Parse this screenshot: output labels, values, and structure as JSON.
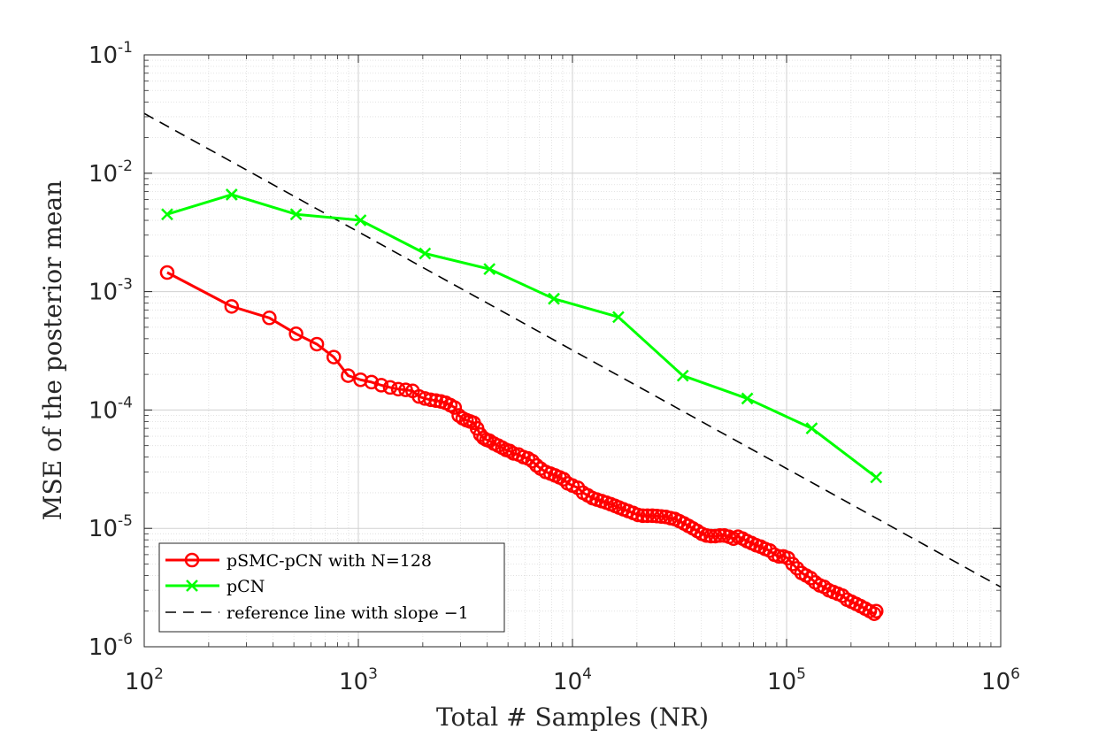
{
  "chart_data": {
    "type": "line",
    "xscale": "log",
    "yscale": "log",
    "title": "",
    "xlabel": "Total # Samples (NR)",
    "ylabel": "MSE of the posterior mean",
    "xlim": [
      100,
      1000000
    ],
    "ylim": [
      1e-06,
      0.1
    ],
    "x_ticks": [
      {
        "value": 100,
        "base": "10",
        "exp": "2"
      },
      {
        "value": 1000,
        "base": "10",
        "exp": "3"
      },
      {
        "value": 10000,
        "base": "10",
        "exp": "4"
      },
      {
        "value": 100000,
        "base": "10",
        "exp": "5"
      },
      {
        "value": 1000000,
        "base": "10",
        "exp": "6"
      }
    ],
    "y_ticks": [
      {
        "value": 0.1,
        "base": "10",
        "exp": "-1"
      },
      {
        "value": 0.01,
        "base": "10",
        "exp": "-2"
      },
      {
        "value": 0.001,
        "base": "10",
        "exp": "-3"
      },
      {
        "value": 0.0001,
        "base": "10",
        "exp": "-4"
      },
      {
        "value": 1e-05,
        "base": "10",
        "exp": "-5"
      },
      {
        "value": 1e-06,
        "base": "10",
        "exp": "-6"
      }
    ],
    "grid": true,
    "minor_grid": true,
    "legend_position": "bottom-left",
    "series": [
      {
        "name": "pSMC-pCN with N=128",
        "color": "#ff0000",
        "marker": "circle",
        "line": "solid",
        "x": [
          128,
          256,
          384,
          512,
          640,
          768,
          896,
          1024,
          1152,
          1280,
          1408,
          1536,
          1664,
          1792,
          1920,
          2048,
          2176,
          2304,
          2432,
          2560,
          2688,
          2816,
          2944,
          3072,
          3200,
          3328,
          3456,
          3584,
          3712,
          3840,
          3968,
          4096,
          4300,
          4500,
          4700,
          4900,
          5100,
          5300,
          5600,
          5900,
          6200,
          6500,
          6800,
          7100,
          7500,
          7900,
          8300,
          8700,
          9100,
          9500,
          10000,
          10600,
          11200,
          11800,
          12400,
          13000,
          13700,
          14400,
          15100,
          15800,
          16500,
          17300,
          18200,
          19200,
          20200,
          21300,
          22400,
          23600,
          24800,
          26000,
          27300,
          28700,
          30100,
          31600,
          33200,
          34800,
          36500,
          38300,
          40200,
          42200,
          44300,
          46500,
          48800,
          51200,
          53800,
          56500,
          59300,
          62300,
          65400,
          68700,
          72100,
          75700,
          79500,
          83500,
          87700,
          92100,
          96700,
          101500,
          106600,
          111900,
          117500,
          123400,
          129600,
          136100,
          142900,
          150000,
          157500,
          165400,
          173700,
          182400,
          191500,
          201100,
          211200,
          221800,
          232900,
          244500,
          256700,
          262144
        ],
        "values": [
          0.00145,
          0.00075,
          0.0006,
          0.00044,
          0.00036,
          0.00028,
          0.000195,
          0.00018,
          0.000172,
          0.000162,
          0.000155,
          0.00015,
          0.000148,
          0.000145,
          0.00013,
          0.000125,
          0.000122,
          0.00012,
          0.000118,
          0.000115,
          0.00011,
          0.000105,
          9e-05,
          8.5e-05,
          8.2e-05,
          8e-05,
          7.8e-05,
          7e-05,
          6.2e-05,
          5.8e-05,
          5.6e-05,
          5.5e-05,
          5.2e-05,
          5e-05,
          4.8e-05,
          4.6e-05,
          4.5e-05,
          4.3e-05,
          4.2e-05,
          4e-05,
          3.9e-05,
          3.7e-05,
          3.4e-05,
          3.2e-05,
          3e-05,
          2.9e-05,
          2.8e-05,
          2.7e-05,
          2.6e-05,
          2.4e-05,
          2.3e-05,
          2.2e-05,
          2e-05,
          1.9e-05,
          1.8e-05,
          1.75e-05,
          1.7e-05,
          1.65e-05,
          1.6e-05,
          1.55e-05,
          1.5e-05,
          1.45e-05,
          1.4e-05,
          1.35e-05,
          1.3e-05,
          1.28e-05,
          1.28e-05,
          1.28e-05,
          1.27e-05,
          1.26e-05,
          1.25e-05,
          1.22e-05,
          1.2e-05,
          1.15e-05,
          1.1e-05,
          1.05e-05,
          1e-05,
          9.5e-06,
          9e-06,
          8.7e-06,
          8.6e-06,
          8.6e-06,
          8.7e-06,
          8.7e-06,
          8.5e-06,
          8.2e-06,
          8.5e-06,
          8.2e-06,
          7.8e-06,
          7.5e-06,
          7.2e-06,
          7e-06,
          6.7e-06,
          6.5e-06,
          6e-06,
          5.8e-06,
          5.8e-06,
          5.6e-06,
          5e-06,
          4.6e-06,
          4.2e-06,
          4e-06,
          3.8e-06,
          3.5e-06,
          3.3e-06,
          3.2e-06,
          3e-06,
          2.9e-06,
          2.8e-06,
          2.7e-06,
          2.5e-06,
          2.4e-06,
          2.3e-06,
          2.2e-06,
          2.1e-06,
          2e-06,
          1.9e-06,
          2e-06
        ]
      },
      {
        "name": "pCN",
        "color": "#00ff00",
        "marker": "x",
        "line": "solid",
        "x": [
          128,
          256,
          512,
          1024,
          2048,
          4096,
          8192,
          16384,
          32768,
          65536,
          131072,
          262144
        ],
        "values": [
          0.0045,
          0.0066,
          0.0045,
          0.004,
          0.0021,
          0.00155,
          0.00087,
          0.00061,
          0.000195,
          0.000125,
          7e-05,
          2.7e-05
        ]
      },
      {
        "name": "reference line with slope −1",
        "color": "#000000",
        "marker": "none",
        "line": "dashed",
        "x": [
          100,
          1000000
        ],
        "values": [
          0.032,
          3.2e-06
        ]
      }
    ]
  }
}
